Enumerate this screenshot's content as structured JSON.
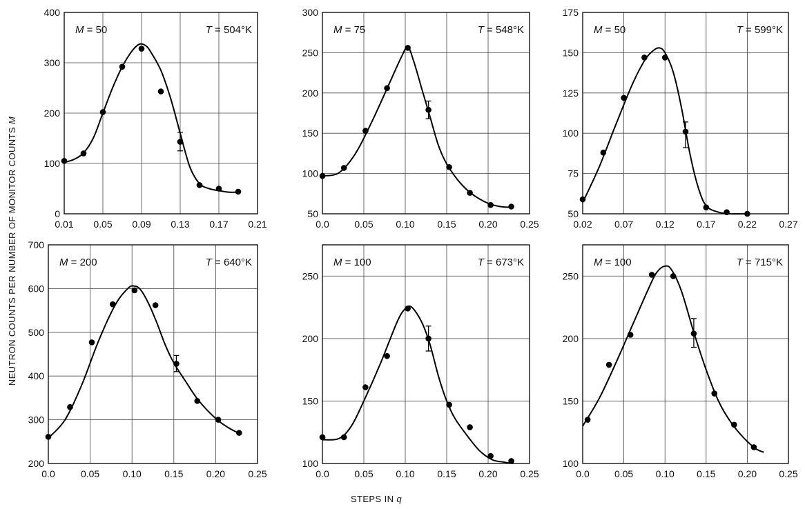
{
  "figure": {
    "ylabel": "NEUTRON COUNTS PER NUMBER OF MONITOR COUNTS",
    "ylabel_symbol": "M",
    "xlabel": "STEPS IN",
    "xlabel_symbol": "q"
  },
  "chart_data": [
    {
      "type": "scatter",
      "panel": "top-left",
      "annotation_m": {
        "symbol": "M",
        "text": " = 50"
      },
      "annotation_t": {
        "symbol": "T",
        "text": " = 504°K"
      },
      "grid": true,
      "xlim": [
        0.01,
        0.21
      ],
      "ylim": [
        0,
        400
      ],
      "xticks": [
        0.01,
        0.05,
        0.09,
        0.13,
        0.17,
        0.21
      ],
      "xtick_labels": [
        "0.01",
        "0.05",
        "0.09",
        "0.13",
        "0.17",
        "0.21"
      ],
      "yticks": [
        0,
        100,
        200,
        300,
        400
      ],
      "ytick_labels": [
        "0",
        "100",
        "200",
        "300",
        "400"
      ],
      "points": [
        {
          "x": 0.01,
          "y": 105
        },
        {
          "x": 0.03,
          "y": 120
        },
        {
          "x": 0.05,
          "y": 202
        },
        {
          "x": 0.07,
          "y": 292
        },
        {
          "x": 0.09,
          "y": 328
        },
        {
          "x": 0.11,
          "y": 243
        },
        {
          "x": 0.13,
          "y": 143
        },
        {
          "x": 0.15,
          "y": 57
        },
        {
          "x": 0.17,
          "y": 50
        },
        {
          "x": 0.19,
          "y": 44
        }
      ],
      "error_bars": [
        {
          "x": 0.13,
          "low": 125,
          "high": 162
        }
      ],
      "fit_curve": [
        [
          0.01,
          102
        ],
        [
          0.02,
          108
        ],
        [
          0.03,
          121
        ],
        [
          0.04,
          150
        ],
        [
          0.05,
          200
        ],
        [
          0.06,
          250
        ],
        [
          0.07,
          292
        ],
        [
          0.08,
          323
        ],
        [
          0.088,
          337
        ],
        [
          0.095,
          333
        ],
        [
          0.1,
          320
        ],
        [
          0.11,
          285
        ],
        [
          0.12,
          230
        ],
        [
          0.13,
          160
        ],
        [
          0.14,
          93
        ],
        [
          0.15,
          60
        ],
        [
          0.16,
          50
        ],
        [
          0.17,
          46
        ],
        [
          0.18,
          43
        ],
        [
          0.19,
          43
        ]
      ]
    },
    {
      "type": "scatter",
      "panel": "top-middle",
      "annotation_m": {
        "symbol": "M",
        "text": " = 75"
      },
      "annotation_t": {
        "symbol": "T",
        "text": " = 548°K"
      },
      "grid": true,
      "xlim": [
        0.0,
        0.25
      ],
      "ylim": [
        50,
        300
      ],
      "xticks": [
        0.0,
        0.05,
        0.1,
        0.15,
        0.2,
        0.25
      ],
      "xtick_labels": [
        "0.0",
        "0.05",
        "0.10",
        "0.15",
        "0.20",
        "0.25"
      ],
      "yticks": [
        50,
        100,
        150,
        200,
        250,
        300
      ],
      "ytick_labels": [
        "50",
        "100",
        "150",
        "200",
        "250",
        "300"
      ],
      "points": [
        {
          "x": 0.0,
          "y": 97
        },
        {
          "x": 0.026,
          "y": 107
        },
        {
          "x": 0.052,
          "y": 153
        },
        {
          "x": 0.078,
          "y": 206
        },
        {
          "x": 0.103,
          "y": 256
        },
        {
          "x": 0.128,
          "y": 179
        },
        {
          "x": 0.153,
          "y": 108
        },
        {
          "x": 0.178,
          "y": 76
        },
        {
          "x": 0.203,
          "y": 61
        },
        {
          "x": 0.228,
          "y": 59
        }
      ],
      "error_bars": [
        {
          "x": 0.128,
          "low": 168,
          "high": 190
        }
      ],
      "fit_curve": [
        [
          0.0,
          97
        ],
        [
          0.02,
          101
        ],
        [
          0.04,
          125
        ],
        [
          0.06,
          165
        ],
        [
          0.08,
          210
        ],
        [
          0.095,
          244
        ],
        [
          0.103,
          257
        ],
        [
          0.11,
          240
        ],
        [
          0.12,
          205
        ],
        [
          0.13,
          170
        ],
        [
          0.14,
          135
        ],
        [
          0.15,
          112
        ],
        [
          0.165,
          90
        ],
        [
          0.18,
          75
        ],
        [
          0.2,
          63
        ],
        [
          0.215,
          59
        ],
        [
          0.228,
          58
        ]
      ]
    },
    {
      "type": "scatter",
      "panel": "top-right",
      "annotation_m": {
        "symbol": "M",
        "text": " = 50"
      },
      "annotation_t": {
        "symbol": "T",
        "text": " = 599°K"
      },
      "grid": true,
      "xlim": [
        0.02,
        0.27
      ],
      "ylim": [
        50,
        175
      ],
      "xticks": [
        0.02,
        0.07,
        0.12,
        0.17,
        0.22,
        0.27
      ],
      "xtick_labels": [
        "0.02",
        "0.07",
        "0.12",
        "0.17",
        "0.22",
        "0.27"
      ],
      "yticks": [
        50,
        75,
        100,
        125,
        150,
        175
      ],
      "ytick_labels": [
        "50",
        "75",
        "100",
        "125",
        "150",
        "175"
      ],
      "points": [
        {
          "x": 0.02,
          "y": 59
        },
        {
          "x": 0.045,
          "y": 88
        },
        {
          "x": 0.07,
          "y": 122
        },
        {
          "x": 0.095,
          "y": 147
        },
        {
          "x": 0.12,
          "y": 147
        },
        {
          "x": 0.145,
          "y": 101
        },
        {
          "x": 0.17,
          "y": 54
        },
        {
          "x": 0.195,
          "y": 51
        },
        {
          "x": 0.22,
          "y": 50
        }
      ],
      "error_bars": [
        {
          "x": 0.145,
          "low": 91,
          "high": 107
        }
      ],
      "fit_curve": [
        [
          0.02,
          57
        ],
        [
          0.04,
          79
        ],
        [
          0.06,
          105
        ],
        [
          0.08,
          130
        ],
        [
          0.095,
          145
        ],
        [
          0.105,
          151
        ],
        [
          0.113,
          153
        ],
        [
          0.12,
          150
        ],
        [
          0.13,
          138
        ],
        [
          0.14,
          116
        ],
        [
          0.15,
          88
        ],
        [
          0.16,
          67
        ],
        [
          0.17,
          55
        ],
        [
          0.185,
          51
        ],
        [
          0.2,
          50
        ],
        [
          0.22,
          50
        ]
      ]
    },
    {
      "type": "scatter",
      "panel": "bottom-left",
      "annotation_m": {
        "symbol": "M",
        "text": " = 200"
      },
      "annotation_t": {
        "symbol": "T",
        "text": " = 640°K"
      },
      "grid": true,
      "xlim": [
        0.0,
        0.25
      ],
      "ylim": [
        200,
        700
      ],
      "xticks": [
        0.0,
        0.05,
        0.1,
        0.15,
        0.2,
        0.25
      ],
      "xtick_labels": [
        "0.0",
        "0.05",
        "0.10",
        "0.15",
        "0.20",
        "0.25"
      ],
      "yticks": [
        200,
        300,
        400,
        500,
        600,
        700
      ],
      "ytick_labels": [
        "200",
        "300",
        "400",
        "500",
        "600",
        "700"
      ],
      "points": [
        {
          "x": 0.0,
          "y": 261
        },
        {
          "x": 0.026,
          "y": 329
        },
        {
          "x": 0.052,
          "y": 477
        },
        {
          "x": 0.077,
          "y": 564
        },
        {
          "x": 0.103,
          "y": 596
        },
        {
          "x": 0.128,
          "y": 562
        },
        {
          "x": 0.153,
          "y": 428
        },
        {
          "x": 0.178,
          "y": 343
        },
        {
          "x": 0.203,
          "y": 300
        },
        {
          "x": 0.228,
          "y": 270
        }
      ],
      "error_bars": [
        {
          "x": 0.153,
          "low": 410,
          "high": 447
        }
      ],
      "fit_curve": [
        [
          0.0,
          258
        ],
        [
          0.02,
          300
        ],
        [
          0.04,
          380
        ],
        [
          0.06,
          480
        ],
        [
          0.08,
          563
        ],
        [
          0.095,
          600
        ],
        [
          0.102,
          606
        ],
        [
          0.11,
          598
        ],
        [
          0.12,
          565
        ],
        [
          0.13,
          520
        ],
        [
          0.14,
          470
        ],
        [
          0.15,
          430
        ],
        [
          0.165,
          385
        ],
        [
          0.18,
          343
        ],
        [
          0.2,
          303
        ],
        [
          0.215,
          282
        ],
        [
          0.23,
          267
        ]
      ]
    },
    {
      "type": "scatter",
      "panel": "bottom-middle",
      "annotation_m": {
        "symbol": "M",
        "text": " = 100"
      },
      "annotation_t": {
        "symbol": "T",
        "text": " = 673°K"
      },
      "grid": true,
      "xlim": [
        0.0,
        0.25
      ],
      "ylim": [
        100,
        275
      ],
      "xticks": [
        0.0,
        0.05,
        0.1,
        0.15,
        0.2,
        0.25
      ],
      "xtick_labels": [
        "0.0",
        "0.05",
        "0.10",
        "0.15",
        "0.20",
        "0.25"
      ],
      "yticks": [
        100,
        150,
        200,
        250
      ],
      "ytick_labels": [
        "100",
        "150",
        "200",
        "250"
      ],
      "points": [
        {
          "x": 0.0,
          "y": 121
        },
        {
          "x": 0.026,
          "y": 121
        },
        {
          "x": 0.052,
          "y": 161
        },
        {
          "x": 0.078,
          "y": 186
        },
        {
          "x": 0.103,
          "y": 224
        },
        {
          "x": 0.128,
          "y": 200
        },
        {
          "x": 0.153,
          "y": 147
        },
        {
          "x": 0.178,
          "y": 129
        },
        {
          "x": 0.203,
          "y": 106
        },
        {
          "x": 0.228,
          "y": 102
        }
      ],
      "error_bars": [
        {
          "x": 0.128,
          "low": 190,
          "high": 210
        }
      ],
      "fit_curve": [
        [
          0.0,
          119
        ],
        [
          0.02,
          120
        ],
        [
          0.035,
          130
        ],
        [
          0.05,
          150
        ],
        [
          0.07,
          180
        ],
        [
          0.09,
          213
        ],
        [
          0.1,
          224
        ],
        [
          0.108,
          225
        ],
        [
          0.12,
          213
        ],
        [
          0.13,
          195
        ],
        [
          0.14,
          170
        ],
        [
          0.15,
          150
        ],
        [
          0.16,
          136
        ],
        [
          0.175,
          122
        ],
        [
          0.19,
          110
        ],
        [
          0.205,
          103
        ],
        [
          0.22,
          101
        ],
        [
          0.23,
          100
        ]
      ]
    },
    {
      "type": "scatter",
      "panel": "bottom-right",
      "annotation_m": {
        "symbol": "M",
        "text": " = 100"
      },
      "annotation_t": {
        "symbol": "T",
        "text": " = 715°K"
      },
      "grid": true,
      "xlim": [
        0.0,
        0.25
      ],
      "ylim": [
        100,
        275
      ],
      "xticks": [
        0.0,
        0.05,
        0.1,
        0.15,
        0.2,
        0.25
      ],
      "xtick_labels": [
        "0.0",
        "0.05",
        "0.10",
        "0.15",
        "0.20",
        "0.25"
      ],
      "yticks": [
        100,
        150,
        200,
        250
      ],
      "ytick_labels": [
        "100",
        "150",
        "200",
        "250"
      ],
      "points": [
        {
          "x": 0.006,
          "y": 135
        },
        {
          "x": 0.032,
          "y": 179
        },
        {
          "x": 0.058,
          "y": 203
        },
        {
          "x": 0.084,
          "y": 251
        },
        {
          "x": 0.11,
          "y": 250
        },
        {
          "x": 0.135,
          "y": 204
        },
        {
          "x": 0.16,
          "y": 156
        },
        {
          "x": 0.184,
          "y": 131
        },
        {
          "x": 0.208,
          "y": 113
        }
      ],
      "error_bars": [
        {
          "x": 0.135,
          "low": 193,
          "high": 216
        }
      ],
      "fit_curve": [
        [
          0.0,
          130
        ],
        [
          0.02,
          152
        ],
        [
          0.04,
          180
        ],
        [
          0.06,
          210
        ],
        [
          0.08,
          240
        ],
        [
          0.09,
          253
        ],
        [
          0.1,
          258
        ],
        [
          0.108,
          255
        ],
        [
          0.12,
          238
        ],
        [
          0.135,
          205
        ],
        [
          0.15,
          175
        ],
        [
          0.165,
          150
        ],
        [
          0.18,
          133
        ],
        [
          0.195,
          121
        ],
        [
          0.21,
          112
        ],
        [
          0.22,
          109
        ]
      ]
    }
  ]
}
